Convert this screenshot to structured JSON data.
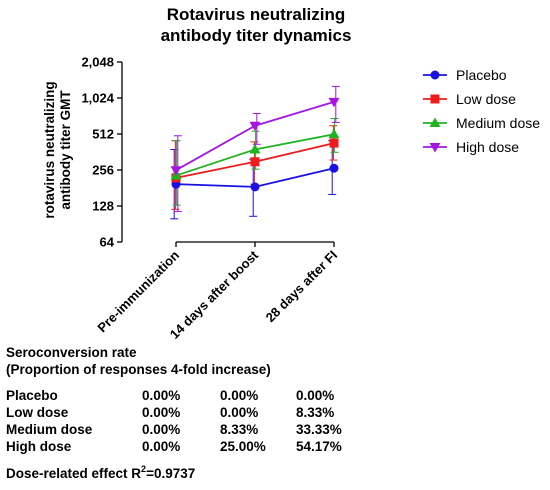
{
  "chart_data": {
    "type": "line",
    "title_line1": "Rotavirus neutralizing",
    "title_line2": "antibody titer dynamics",
    "ylabel_line1": "rotavirus neutralizing",
    "ylabel_line2": "antibody titer GMT",
    "xlabel": "",
    "y_scale": "log2",
    "ylim": [
      64,
      2048
    ],
    "yticks": [
      64,
      128,
      256,
      512,
      1024,
      2048
    ],
    "ytick_labels": [
      "64",
      "128",
      "256",
      "512",
      "1,024",
      "2,048"
    ],
    "categories": [
      "Pre-immunization",
      "14 days after boost",
      "28 days after FI"
    ],
    "legend_position": "right",
    "grid": false,
    "series": [
      {
        "name": "Placebo",
        "color": "#1a10e6",
        "marker": "circle",
        "values": [
          195,
          185,
          265
        ],
        "err_low": [
          100,
          105,
          160
        ],
        "err_high": [
          380,
          315,
          450
        ]
      },
      {
        "name": "Low dose",
        "color": "#ee1c1c",
        "marker": "square",
        "values": [
          220,
          300,
          430
        ],
        "err_low": [
          120,
          195,
          310
        ],
        "err_high": [
          450,
          440,
          600
        ]
      },
      {
        "name": "Medium dose",
        "color": "#1fb41f",
        "marker": "triangle-up",
        "values": [
          230,
          380,
          510
        ],
        "err_low": [
          130,
          260,
          360
        ],
        "err_high": [
          450,
          540,
          690
        ]
      },
      {
        "name": "High dose",
        "color": "#a516e0",
        "marker": "triangle-down",
        "values": [
          255,
          600,
          950
        ],
        "err_low": [
          115,
          420,
          640
        ],
        "err_high": [
          495,
          760,
          1280
        ]
      }
    ]
  },
  "seroconversion": {
    "title_line1": "Seroconversion rate",
    "title_line2": "(Proportion of responses 4-fold increase)",
    "rows": [
      {
        "group": "Placebo",
        "values": [
          "0.00%",
          "0.00%",
          "0.00%"
        ]
      },
      {
        "group": "Low dose",
        "values": [
          "0.00%",
          "0.00%",
          "8.33%"
        ]
      },
      {
        "group": "Medium dose",
        "values": [
          "0.00%",
          "8.33%",
          "33.33%"
        ]
      },
      {
        "group": "High dose",
        "values": [
          "0.00%",
          "25.00%",
          "54.17%"
        ]
      }
    ],
    "effect_prefix": "Dose-related effect R",
    "effect_sup": "2",
    "effect_value": "=0.9737"
  }
}
